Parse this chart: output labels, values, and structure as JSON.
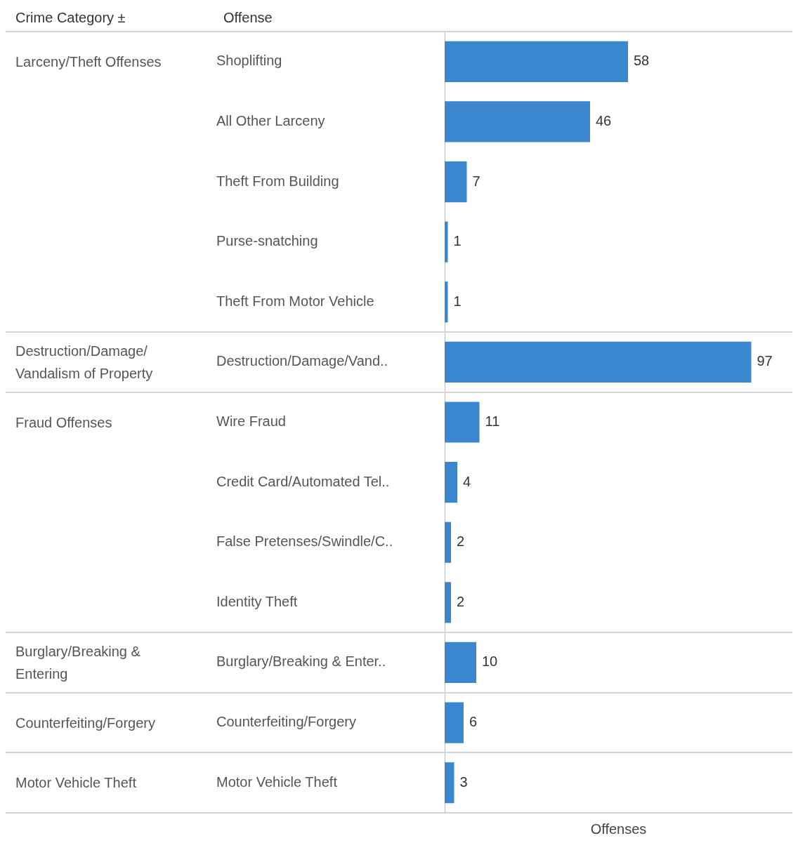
{
  "chart_data": {
    "type": "bar",
    "orientation": "horizontal",
    "xlabel": "Offenses",
    "ylabel": "Offense",
    "annotations": [
      "Crime Category ±"
    ],
    "categories": [
      "Shoplifting",
      "All Other Larceny",
      "Theft From Building",
      "Purse-snatching",
      "Theft From Motor Vehicle",
      "Destruction/Damage/Vand..",
      "Wire Fraud",
      "Credit Card/Automated Tel..",
      "False Pretenses/Swindle/C..",
      "Identity Theft",
      "Burglary/Breaking & Enter..",
      "Counterfeiting/Forgery",
      "Motor Vehicle Theft"
    ],
    "y2_categories": [
      "Larceny/Theft Offenses",
      null,
      null,
      null,
      null,
      "Destruction/Damage/Vandalism of Property",
      "Fraud Offenses",
      null,
      null,
      null,
      "Burglary/Breaking & Entering",
      "Counterfeiting/Forgery",
      "Motor Vehicle Theft"
    ],
    "values": [
      58,
      46,
      7,
      1,
      1,
      97,
      11,
      4,
      2,
      2,
      10,
      6,
      3
    ],
    "color": "#3a87d0",
    "xlim": [
      0,
      110
    ],
    "data_labels": true,
    "grid": false,
    "legend": false
  }
}
